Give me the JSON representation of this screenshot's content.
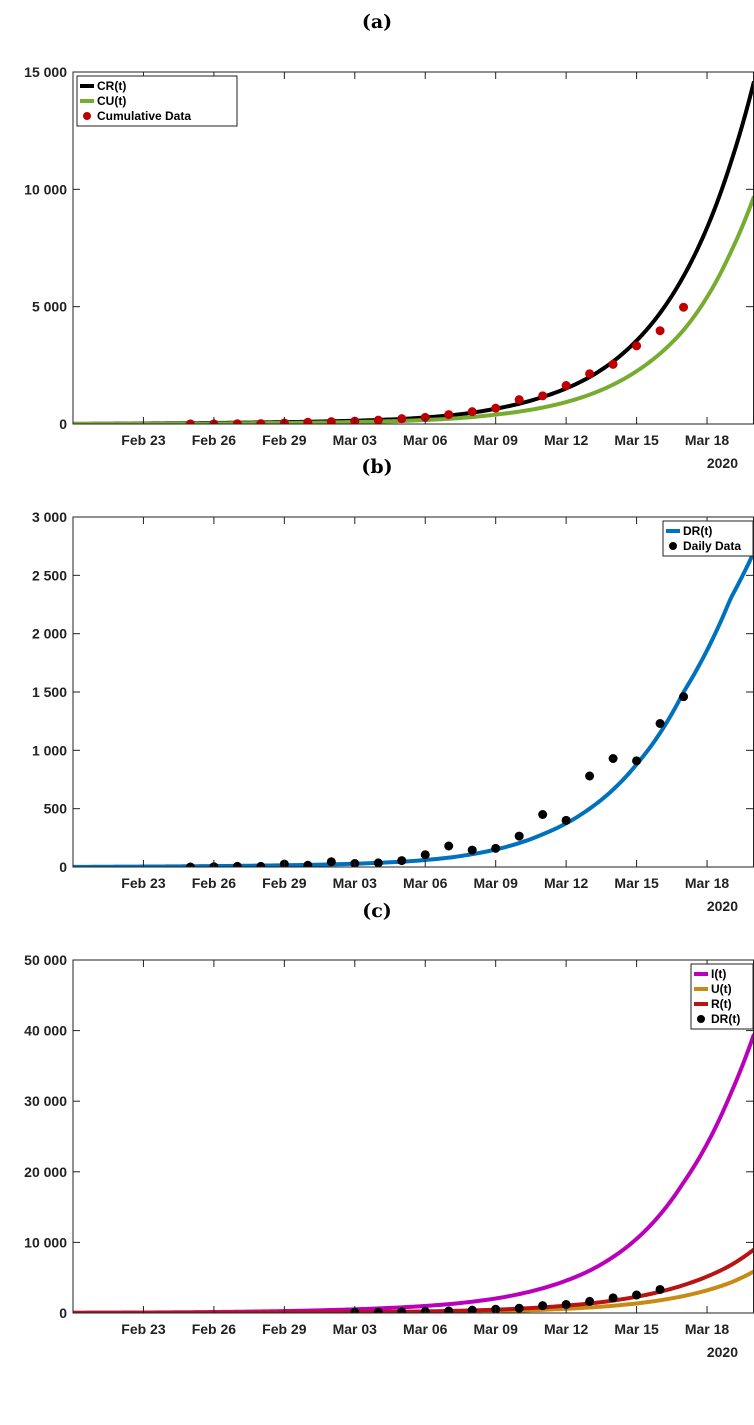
{
  "chart_data": [
    {
      "type": "line",
      "panel_label": "(a)",
      "x_axis_type": "date",
      "xlim": [
        "2020-02-20",
        "2020-03-20"
      ],
      "x_tick_labels": [
        "Feb 23",
        "Feb 26",
        "Feb 29",
        "Mar 03",
        "Mar 06",
        "Mar 09",
        "Mar 12",
        "Mar 15",
        "Mar 18"
      ],
      "x_tick_dates": [
        "2020-02-23",
        "2020-02-26",
        "2020-02-29",
        "2020-03-03",
        "2020-03-06",
        "2020-03-09",
        "2020-03-12",
        "2020-03-15",
        "2020-03-18"
      ],
      "year_label": "2020",
      "ylim": [
        0,
        15000
      ],
      "y_tick_values": [
        0,
        5000,
        10000,
        15000
      ],
      "y_tick_labels": [
        "0",
        "5 000",
        "10 000",
        "15 000"
      ],
      "grid": false,
      "legend_position": "top-left",
      "series": [
        {
          "name": "CR(t)",
          "kind": "line",
          "color": "#000000",
          "x": [
            "2020-02-20",
            "2020-02-22",
            "2020-02-24",
            "2020-02-26",
            "2020-02-28",
            "2020-03-01",
            "2020-03-03",
            "2020-03-05",
            "2020-03-07",
            "2020-03-09",
            "2020-03-11",
            "2020-03-13",
            "2020-03-15",
            "2020-03-17",
            "2020-03-19",
            "2020-03-20"
          ],
          "values": [
            5,
            15,
            30,
            45,
            65,
            95,
            140,
            215,
            360,
            650,
            1150,
            2000,
            3550,
            6300,
            11100,
            14600
          ]
        },
        {
          "name": "CU(t)",
          "kind": "line",
          "color": "#77AC30",
          "x": [
            "2020-02-20",
            "2020-02-22",
            "2020-02-24",
            "2020-02-26",
            "2020-02-28",
            "2020-03-01",
            "2020-03-03",
            "2020-03-05",
            "2020-03-07",
            "2020-03-09",
            "2020-03-11",
            "2020-03-13",
            "2020-03-15",
            "2020-03-17",
            "2020-03-19",
            "2020-03-20"
          ],
          "values": [
            3,
            8,
            15,
            25,
            38,
            55,
            85,
            130,
            220,
            400,
            700,
            1250,
            2250,
            4000,
            7300,
            9700
          ]
        },
        {
          "name": "Cumulative Data",
          "kind": "scatter",
          "color": "#C00000",
          "x": [
            "2020-02-25",
            "2020-02-26",
            "2020-02-27",
            "2020-02-28",
            "2020-02-29",
            "2020-03-01",
            "2020-03-02",
            "2020-03-03",
            "2020-03-04",
            "2020-03-05",
            "2020-03-06",
            "2020-03-07",
            "2020-03-08",
            "2020-03-09",
            "2020-03-10",
            "2020-03-11",
            "2020-03-12",
            "2020-03-13",
            "2020-03-14",
            "2020-03-15",
            "2020-03-16",
            "2020-03-17"
          ],
          "values": [
            3,
            5,
            13,
            18,
            45,
            73,
            100,
            120,
            165,
            228,
            282,
            401,
            525,
            674,
            1039,
            1200,
            1639,
            2140,
            2543,
            3330,
            3975,
            4976
          ]
        }
      ]
    },
    {
      "type": "line",
      "panel_label": "(b)",
      "x_axis_type": "date",
      "xlim": [
        "2020-02-20",
        "2020-03-20"
      ],
      "x_tick_labels": [
        "Feb 23",
        "Feb 26",
        "Feb 29",
        "Mar 03",
        "Mar 06",
        "Mar 09",
        "Mar 12",
        "Mar 15",
        "Mar 18"
      ],
      "x_tick_dates": [
        "2020-02-23",
        "2020-02-26",
        "2020-02-29",
        "2020-03-03",
        "2020-03-06",
        "2020-03-09",
        "2020-03-12",
        "2020-03-15",
        "2020-03-18"
      ],
      "year_label": "2020",
      "ylim": [
        0,
        3000
      ],
      "y_tick_values": [
        0,
        500,
        1000,
        1500,
        2000,
        2500,
        3000
      ],
      "y_tick_labels": [
        "0",
        "500",
        "1 000",
        "1 500",
        "2 000",
        "2 500",
        "3 000"
      ],
      "grid": false,
      "legend_position": "top-right",
      "series": [
        {
          "name": "DR(t)",
          "kind": "line",
          "color": "#0072BD",
          "x": [
            "2020-02-20",
            "2020-02-22",
            "2020-02-24",
            "2020-02-26",
            "2020-02-28",
            "2020-03-01",
            "2020-03-03",
            "2020-03-05",
            "2020-03-07",
            "2020-03-09",
            "2020-03-11",
            "2020-03-13",
            "2020-03-15",
            "2020-03-17",
            "2020-03-19",
            "2020-03-20"
          ],
          "values": [
            1,
            3,
            5,
            8,
            12,
            18,
            28,
            45,
            80,
            150,
            280,
            500,
            880,
            1500,
            2300,
            2700
          ]
        },
        {
          "name": "Daily Data",
          "kind": "scatter",
          "color": "#000000",
          "x": [
            "2020-02-25",
            "2020-02-26",
            "2020-02-27",
            "2020-02-28",
            "2020-02-29",
            "2020-03-01",
            "2020-03-02",
            "2020-03-03",
            "2020-03-04",
            "2020-03-05",
            "2020-03-06",
            "2020-03-07",
            "2020-03-08",
            "2020-03-09",
            "2020-03-10",
            "2020-03-11",
            "2020-03-12",
            "2020-03-13",
            "2020-03-14",
            "2020-03-15",
            "2020-03-16",
            "2020-03-17"
          ],
          "values": [
            0,
            2,
            5,
            5,
            25,
            15,
            45,
            30,
            35,
            55,
            105,
            180,
            145,
            160,
            265,
            450,
            400,
            780,
            930,
            910,
            1230,
            1460
          ]
        }
      ]
    },
    {
      "type": "line",
      "panel_label": "(c)",
      "x_axis_type": "date",
      "xlim": [
        "2020-02-20",
        "2020-03-20"
      ],
      "x_tick_labels": [
        "Feb 23",
        "Feb 26",
        "Feb 29",
        "Mar 03",
        "Mar 06",
        "Mar 09",
        "Mar 12",
        "Mar 15",
        "Mar 18"
      ],
      "x_tick_dates": [
        "2020-02-23",
        "2020-02-26",
        "2020-02-29",
        "2020-03-03",
        "2020-03-06",
        "2020-03-09",
        "2020-03-12",
        "2020-03-15",
        "2020-03-18"
      ],
      "year_label": "2020",
      "ylim": [
        0,
        50000
      ],
      "y_tick_values": [
        0,
        10000,
        20000,
        30000,
        40000,
        50000
      ],
      "y_tick_labels": [
        "0",
        "10 000",
        "20 000",
        "30 000",
        "40 000",
        "50 000"
      ],
      "grid": false,
      "legend_position": "top-right",
      "series": [
        {
          "name": "I(t)",
          "kind": "line",
          "color": "#BB00BB",
          "x": [
            "2020-02-20",
            "2020-02-22",
            "2020-02-24",
            "2020-02-26",
            "2020-02-28",
            "2020-03-01",
            "2020-03-03",
            "2020-03-05",
            "2020-03-07",
            "2020-03-09",
            "2020-03-11",
            "2020-03-13",
            "2020-03-15",
            "2020-03-17",
            "2020-03-19",
            "2020-03-20"
          ],
          "values": [
            40,
            60,
            90,
            140,
            220,
            340,
            520,
            800,
            1250,
            2050,
            3500,
            6000,
            10500,
            18500,
            31000,
            39500
          ]
        },
        {
          "name": "U(t)",
          "kind": "line",
          "color": "#C88A12",
          "x": [
            "2020-02-20",
            "2020-02-22",
            "2020-02-24",
            "2020-02-26",
            "2020-02-28",
            "2020-03-01",
            "2020-03-03",
            "2020-03-05",
            "2020-03-07",
            "2020-03-09",
            "2020-03-11",
            "2020-03-13",
            "2020-03-15",
            "2020-03-17",
            "2020-03-19",
            "2020-03-20"
          ],
          "values": [
            5,
            8,
            12,
            18,
            28,
            42,
            65,
            100,
            160,
            260,
            450,
            780,
            1350,
            2400,
            4300,
            5900
          ]
        },
        {
          "name": "R(t)",
          "kind": "line",
          "color": "#B81414",
          "x": [
            "2020-02-20",
            "2020-02-22",
            "2020-02-24",
            "2020-02-26",
            "2020-02-28",
            "2020-03-01",
            "2020-03-03",
            "2020-03-05",
            "2020-03-07",
            "2020-03-09",
            "2020-03-11",
            "2020-03-13",
            "2020-03-15",
            "2020-03-17",
            "2020-03-19",
            "2020-03-20"
          ],
          "values": [
            10,
            15,
            22,
            33,
            50,
            75,
            115,
            180,
            290,
            470,
            800,
            1350,
            2300,
            3950,
            6750,
            9000
          ]
        },
        {
          "name": "DR(t)",
          "kind": "scatter",
          "color": "#000000",
          "x": [
            "2020-03-03",
            "2020-03-04",
            "2020-03-05",
            "2020-03-06",
            "2020-03-07",
            "2020-03-08",
            "2020-03-09",
            "2020-03-10",
            "2020-03-11",
            "2020-03-12",
            "2020-03-13",
            "2020-03-14",
            "2020-03-15",
            "2020-03-16"
          ],
          "values": [
            100,
            120,
            165,
            228,
            282,
            401,
            525,
            674,
            1039,
            1200,
            1639,
            2140,
            2543,
            3330
          ]
        }
      ]
    }
  ]
}
